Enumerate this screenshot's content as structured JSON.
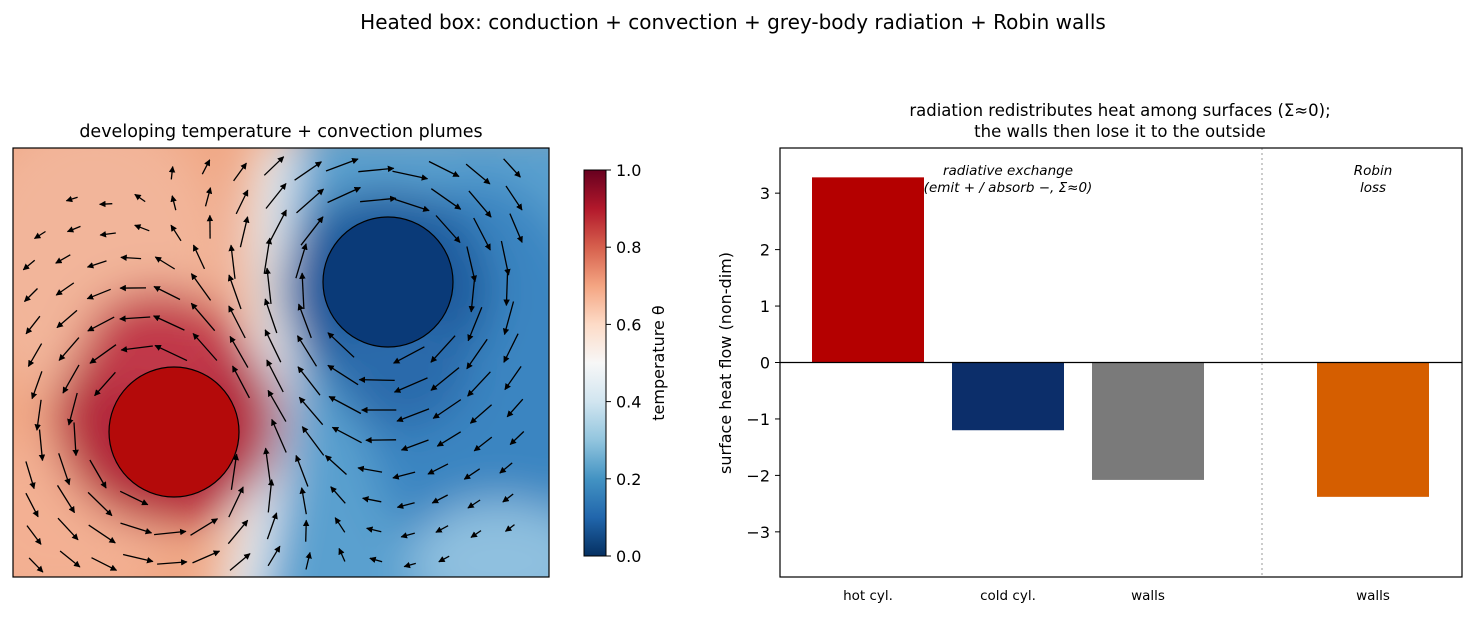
{
  "figure": {
    "suptitle": "Heated box: conduction + convection + grey-body radiation + Robin walls"
  },
  "chart_data": [
    {
      "type": "heatmap",
      "title": "developing temperature + convection plumes",
      "colorbar": {
        "label": "temperature θ",
        "range": [
          0.0,
          1.0
        ],
        "ticks": [
          "0.0",
          "0.2",
          "0.4",
          "0.6",
          "0.8",
          "1.0"
        ],
        "colormap": "RdBu_r",
        "stops": [
          "#053061",
          "#2166ac",
          "#4393c3",
          "#92c5de",
          "#d1e5f0",
          "#f7f7f7",
          "#fddbc7",
          "#f4a582",
          "#d6604d",
          "#b2182b",
          "#67001f"
        ]
      },
      "overlays": [
        "hot cylinder",
        "cold cylinder",
        "velocity arrows"
      ],
      "colors": {
        "hot_cylinder": "#b40a0a",
        "cold_cylinder": "#0a3a78"
      }
    },
    {
      "type": "bar",
      "title_lines": [
        "radiation redistributes heat among surfaces (Σ≈0);",
        "the walls then lose it to the outside"
      ],
      "ylabel": "surface heat flow (non-dim)",
      "ylim": [
        -3.8,
        3.8
      ],
      "yticks": [
        "3",
        "2",
        "1",
        "0",
        "−1",
        "−2",
        "−3"
      ],
      "categories": [
        "hot cyl.",
        "cold cyl.",
        "walls",
        "walls"
      ],
      "values": [
        3.28,
        -1.2,
        -2.08,
        -2.38
      ],
      "colors": [
        "#b40000",
        "#0c2e6a",
        "#7a7a7a",
        "#d55e00"
      ],
      "annotations": [
        {
          "lines": [
            "radiative exchange",
            "(emit + / absorb −, Σ≈0)"
          ]
        },
        {
          "lines": [
            "Robin",
            "loss"
          ]
        }
      ]
    }
  ]
}
